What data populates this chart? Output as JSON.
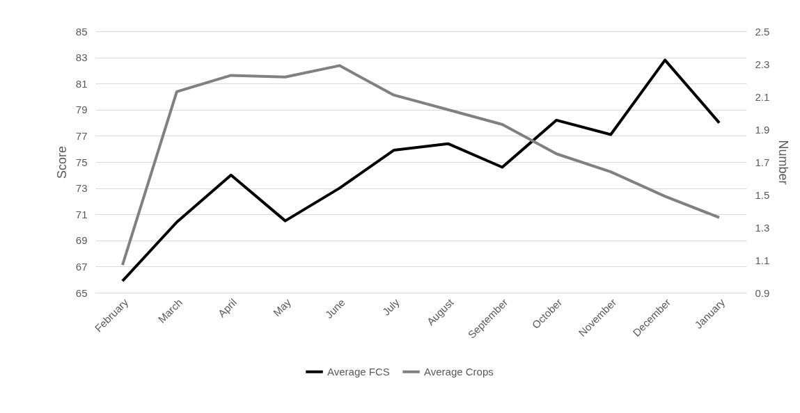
{
  "chart_data": {
    "type": "line",
    "categories": [
      "February",
      "March",
      "April",
      "May",
      "June",
      "July",
      "August",
      "September",
      "October",
      "November",
      "December",
      "January"
    ],
    "series": [
      {
        "name": "Average FCS",
        "color": "#000000",
        "values": [
          65.9,
          70.4,
          74.0,
          70.5,
          73.0,
          75.9,
          76.4,
          74.6,
          78.2,
          77.1,
          82.8,
          78.0
        ]
      },
      {
        "name": "Average Crops",
        "color": "#808080",
        "axis": "y2",
        "values": [
          1.07,
          2.13,
          2.23,
          2.22,
          2.29,
          2.11,
          2.02,
          1.93,
          1.75,
          1.64,
          1.49,
          1.36
        ]
      }
    ],
    "ylabel": "Score",
    "y2label": "Number",
    "ylim": [
      65,
      85
    ],
    "yticks": [
      65,
      67,
      69,
      71,
      73,
      75,
      77,
      79,
      81,
      83,
      85
    ],
    "y2lim": [
      0.9,
      2.5
    ],
    "y2ticks": [
      {
        "value": 0.9,
        "label": "0.9"
      },
      1.1,
      1.3,
      1.5,
      1.7,
      1.9,
      2.1,
      2.3,
      2.5
    ],
    "grid": "y",
    "legend": "bottom",
    "marker": "none",
    "line_style": "solid"
  }
}
